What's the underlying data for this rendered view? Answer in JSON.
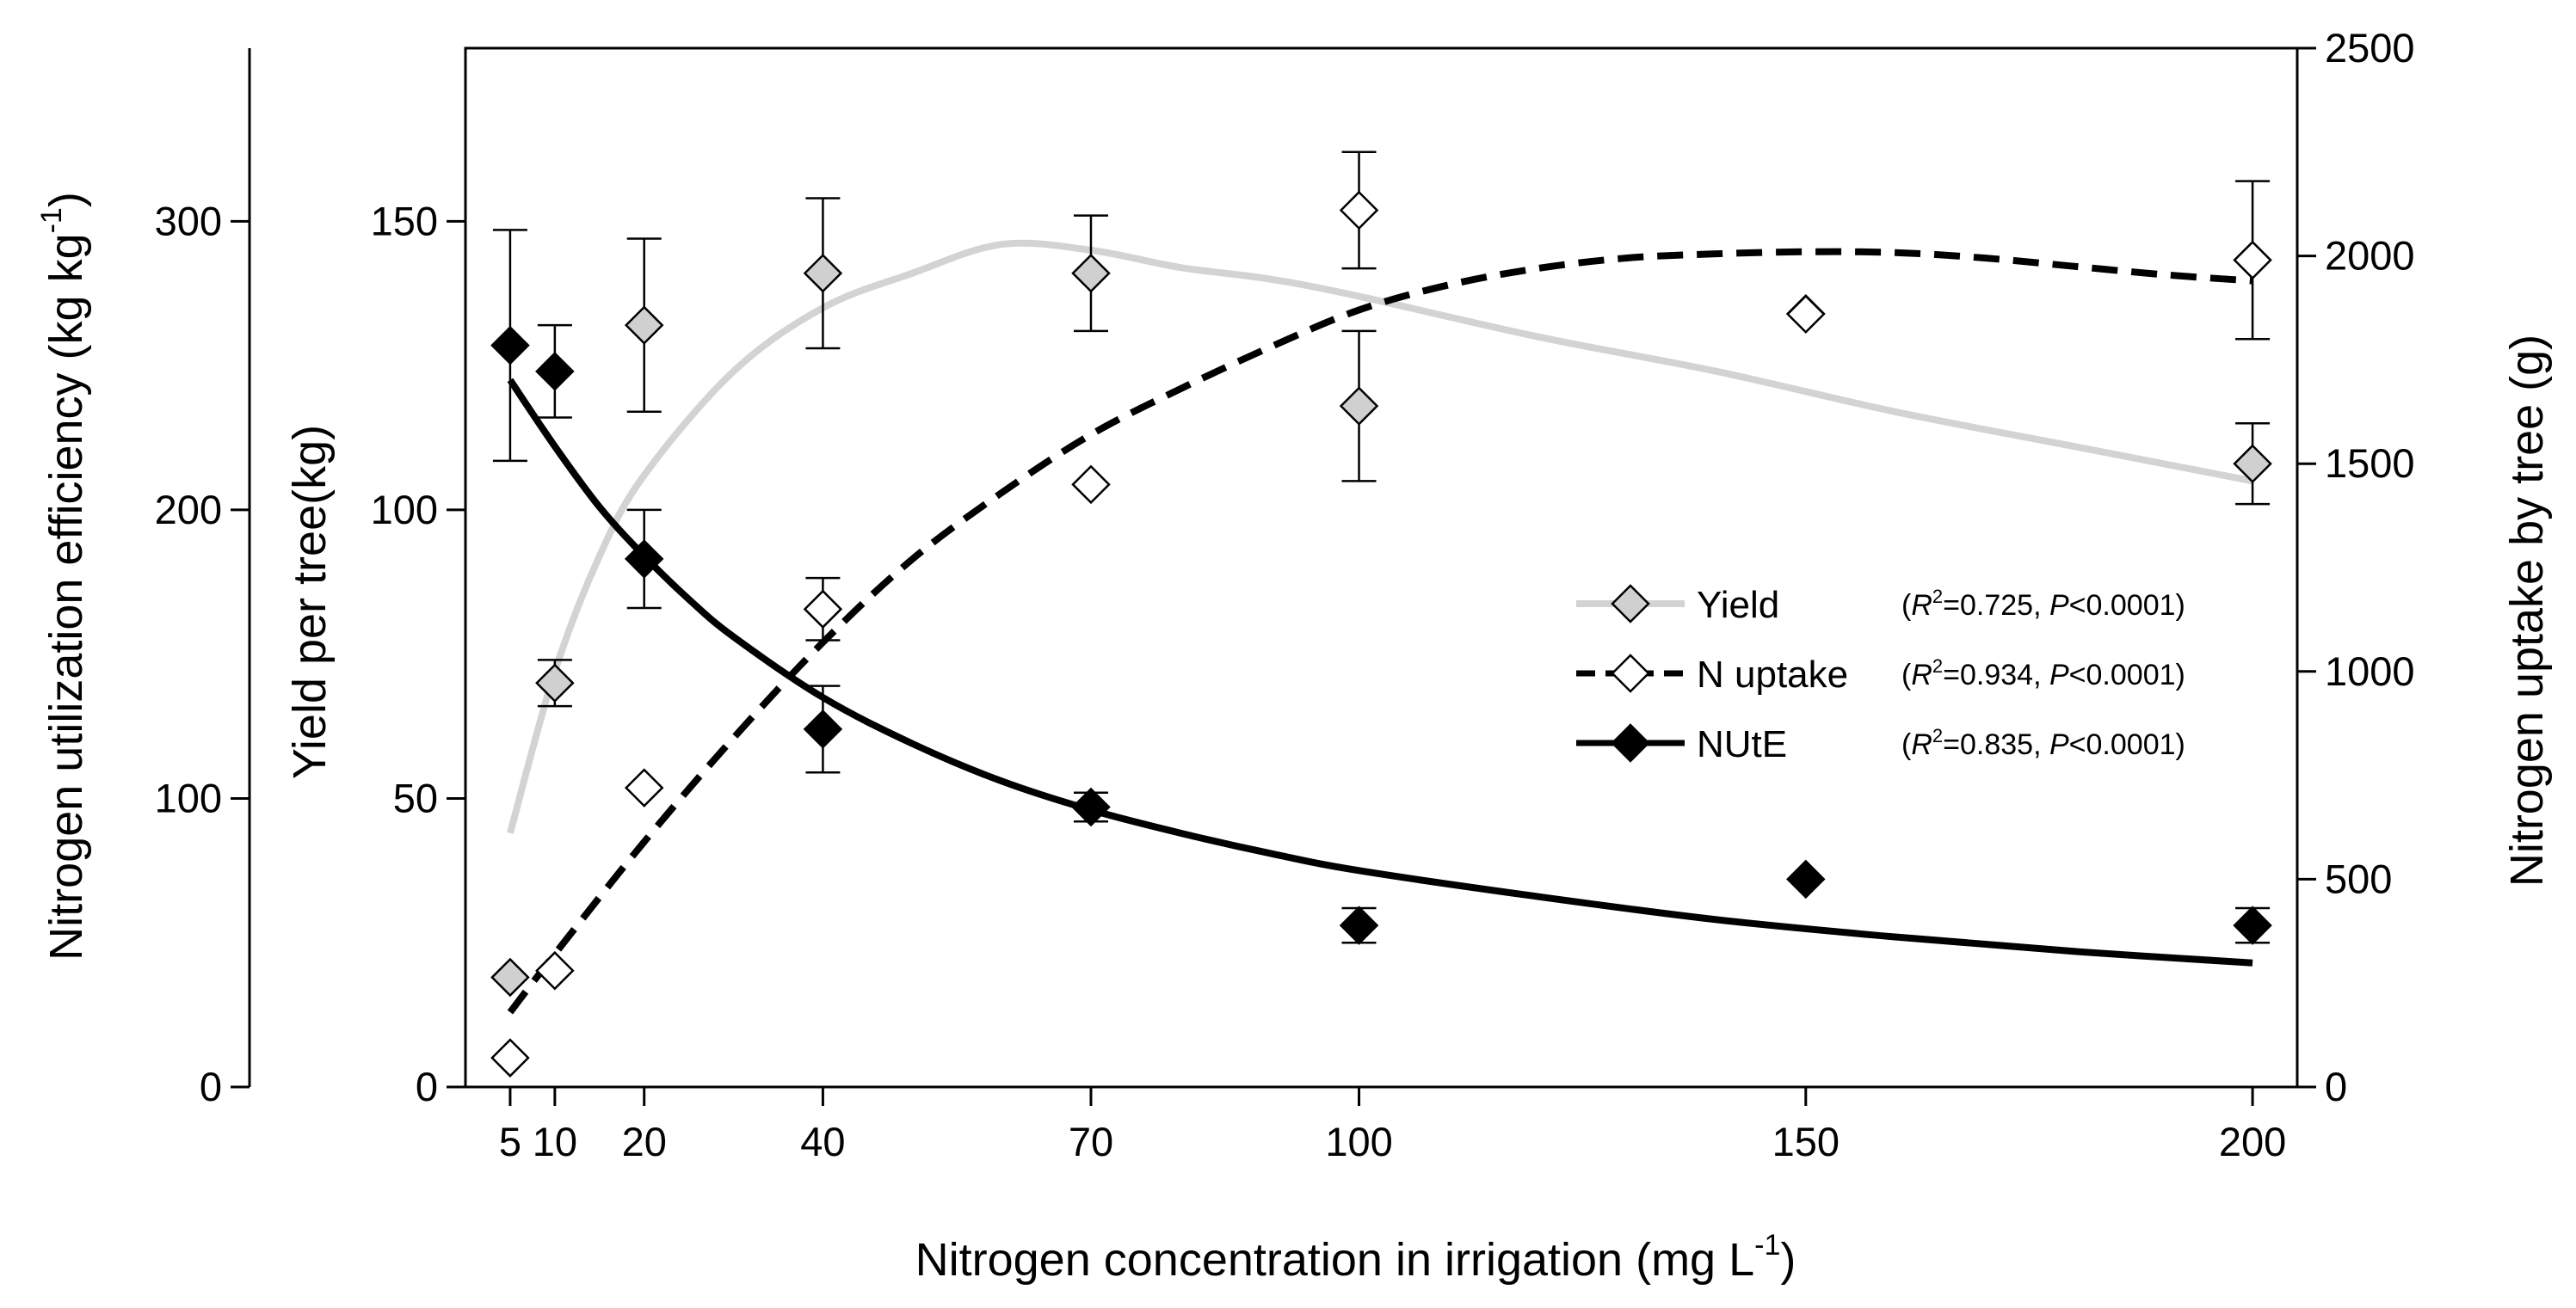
{
  "chart_data": {
    "type": "scatter",
    "title": "",
    "xlabel": "Nitrogen concentration in irrigation (mg L",
    "xlabel_sup": "-1",
    "xlabel_end": ")",
    "x_ticks": [
      5,
      10,
      20,
      40,
      70,
      100,
      150,
      200
    ],
    "xlim": [
      0,
      205
    ],
    "axes": {
      "nute_axis": {
        "label": "Nitrogen utilization efficiency (kg kg",
        "label_sup": "-1",
        "label_end": ")",
        "ylim": [
          0,
          360
        ],
        "ticks": [
          0,
          100,
          200,
          300
        ]
      },
      "yield_axis": {
        "label": "Yield per tree(kg)",
        "ylim": [
          0,
          180
        ],
        "ticks": [
          0,
          50,
          100,
          150
        ]
      },
      "uptake_axis": {
        "label": "Nitrogen uptake by tree (g)",
        "ylim": [
          0,
          2500
        ],
        "ticks": [
          0,
          500,
          1000,
          1500,
          2000,
          2500
        ]
      }
    },
    "series": [
      {
        "name": "Yield",
        "axis": "yield_axis",
        "marker_fill": "#d0d0d0",
        "line_color": "#d3d3d3",
        "line_style": "solid",
        "stat_r2": "=0.725,",
        "stat_p": "<0.0001)",
        "points": [
          {
            "x": 5,
            "y": 19,
            "err": 0
          },
          {
            "x": 10,
            "y": 70,
            "err": 4
          },
          {
            "x": 20,
            "y": 132,
            "err": 15
          },
          {
            "x": 40,
            "y": 141,
            "err": 13
          },
          {
            "x": 70,
            "y": 141,
            "err": 10
          },
          {
            "x": 100,
            "y": 118,
            "err": 13
          },
          {
            "x": 150,
            "y": 134,
            "err": 0
          },
          {
            "x": 200,
            "y": 108,
            "err": 7
          }
        ],
        "fit": [
          [
            5,
            44
          ],
          [
            10,
            72
          ],
          [
            15,
            92
          ],
          [
            20,
            106
          ],
          [
            30,
            124
          ],
          [
            40,
            135
          ],
          [
            50,
            141
          ],
          [
            60,
            146
          ],
          [
            70,
            145
          ],
          [
            80,
            142
          ],
          [
            90,
            140
          ],
          [
            100,
            137
          ],
          [
            120,
            130
          ],
          [
            140,
            124
          ],
          [
            160,
            117
          ],
          [
            180,
            111
          ],
          [
            200,
            105
          ]
        ]
      },
      {
        "name": "N uptake",
        "axis": "uptake_axis",
        "marker_fill": "#ffffff",
        "line_color": "#000000",
        "line_style": "dashed",
        "stat_r2": "=0.934,",
        "stat_p": "<0.0001)",
        "points": [
          {
            "x": 5,
            "y": 70,
            "err": 0
          },
          {
            "x": 10,
            "y": 280,
            "err": 0
          },
          {
            "x": 20,
            "y": 720,
            "err": 0
          },
          {
            "x": 40,
            "y": 1150,
            "err": 75
          },
          {
            "x": 70,
            "y": 1450,
            "err": 0
          },
          {
            "x": 100,
            "y": 2110,
            "err": 140
          },
          {
            "x": 150,
            "y": 1860,
            "err": 0
          },
          {
            "x": 200,
            "y": 1990,
            "err": 190
          }
        ],
        "fit": [
          [
            5,
            180
          ],
          [
            10,
            320
          ],
          [
            20,
            590
          ],
          [
            30,
            840
          ],
          [
            40,
            1070
          ],
          [
            50,
            1270
          ],
          [
            60,
            1430
          ],
          [
            70,
            1570
          ],
          [
            80,
            1680
          ],
          [
            90,
            1780
          ],
          [
            100,
            1870
          ],
          [
            110,
            1930
          ],
          [
            120,
            1970
          ],
          [
            130,
            1995
          ],
          [
            140,
            2005
          ],
          [
            150,
            2010
          ],
          [
            160,
            2008
          ],
          [
            170,
            1995
          ],
          [
            180,
            1975
          ],
          [
            190,
            1955
          ],
          [
            200,
            1940
          ]
        ]
      },
      {
        "name": "NUtE",
        "axis": "nute_axis",
        "marker_fill": "#000000",
        "line_color": "#000000",
        "line_style": "solid",
        "stat_r2": "=0.835,",
        "stat_p": "<0.0001)",
        "points": [
          {
            "x": 5,
            "y": 257,
            "err": 40
          },
          {
            "x": 10,
            "y": 248,
            "err": 16
          },
          {
            "x": 20,
            "y": 183,
            "err": 17
          },
          {
            "x": 40,
            "y": 124,
            "err": 15
          },
          {
            "x": 70,
            "y": 97,
            "err": 5
          },
          {
            "x": 100,
            "y": 56,
            "err": 6
          },
          {
            "x": 150,
            "y": 72,
            "err": 0
          },
          {
            "x": 200,
            "y": 56,
            "err": 6
          }
        ],
        "fit": [
          [
            5,
            245
          ],
          [
            10,
            222
          ],
          [
            15,
            201
          ],
          [
            20,
            184
          ],
          [
            25,
            169
          ],
          [
            30,
            156
          ],
          [
            40,
            135
          ],
          [
            50,
            119
          ],
          [
            60,
            106
          ],
          [
            70,
            96
          ],
          [
            80,
            88
          ],
          [
            90,
            81
          ],
          [
            100,
            75
          ],
          [
            120,
            66
          ],
          [
            140,
            58
          ],
          [
            160,
            52
          ],
          [
            180,
            47
          ],
          [
            200,
            43
          ]
        ]
      }
    ],
    "legend": {
      "placement": "right-center",
      "stat_open": "(",
      "stat_r": "R",
      "stat_r_sup": "2",
      "stat_p_label": "P"
    }
  }
}
